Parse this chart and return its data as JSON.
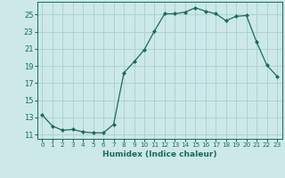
{
  "x": [
    0,
    1,
    2,
    3,
    4,
    5,
    6,
    7,
    8,
    9,
    10,
    11,
    12,
    13,
    14,
    15,
    16,
    17,
    18,
    19,
    20,
    21,
    22,
    23
  ],
  "y": [
    13.3,
    12.0,
    11.5,
    11.6,
    11.3,
    11.2,
    11.2,
    12.2,
    18.2,
    19.5,
    20.9,
    23.1,
    25.1,
    25.1,
    25.3,
    25.8,
    25.4,
    25.1,
    24.3,
    24.8,
    24.9,
    21.8,
    19.1,
    17.8
  ],
  "line_color": "#1a6b5a",
  "marker": "D",
  "marker_size": 2.0,
  "xlabel": "Humidex (Indice chaleur)",
  "xlim": [
    -0.5,
    23.5
  ],
  "ylim": [
    10.5,
    26.5
  ],
  "yticks": [
    11,
    13,
    15,
    17,
    19,
    21,
    23,
    25
  ],
  "bg_color": "#cce8e8",
  "grid_color": "#aacece",
  "label_color": "#1a6b5a",
  "xlabel_fontsize": 6.5,
  "ytick_fontsize": 6.0,
  "xtick_fontsize": 5.2
}
